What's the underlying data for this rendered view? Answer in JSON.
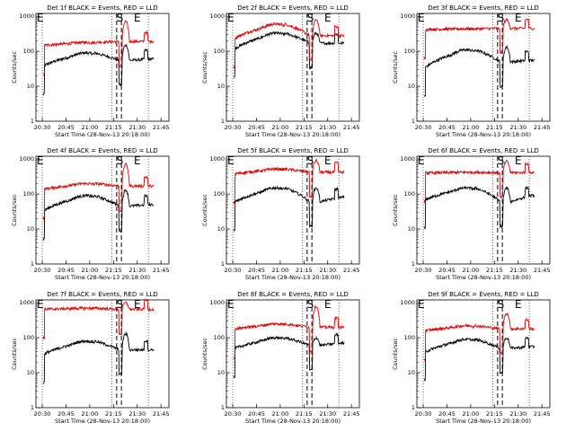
{
  "figure": {
    "xtick_labels": [
      "20:30",
      "20:45",
      "21:00",
      "21:15",
      "21:30",
      "21:45"
    ],
    "ytick_labels": [
      "1",
      "10",
      "100",
      "1000"
    ],
    "xlabel": "Start Time (28-Nov-13 20:18:00)",
    "ylabel": "Counts/sec",
    "marker_left": "E",
    "marker_mid": "S",
    "marker_right": "E"
  },
  "chart_data": [
    {
      "type": "line",
      "title": "Det 1f BLACK = Events, RED = LLD",
      "series": [
        {
          "name": "Events",
          "color": "#000000",
          "start": 40,
          "mid": 90,
          "end": 55,
          "peak": 150,
          "tail": 60
        },
        {
          "name": "LLD",
          "color": "#e00000",
          "start": 150,
          "mid": 180,
          "end": 190,
          "peak": 700,
          "tail": 190
        }
      ]
    },
    {
      "type": "line",
      "title": "Det 2f BLACK = Events, RED = LLD",
      "series": [
        {
          "name": "Events",
          "color": "#000000",
          "start": 120,
          "mid": 330,
          "end": 170,
          "peak": 330,
          "tail": 170
        },
        {
          "name": "LLD",
          "color": "#e00000",
          "start": 240,
          "mid": 600,
          "end": 280,
          "peak": 800,
          "tail": 280
        }
      ]
    },
    {
      "type": "line",
      "title": "Det 3f BLACK = Events, RED = LLD",
      "series": [
        {
          "name": "Events",
          "color": "#000000",
          "start": 35,
          "mid": 110,
          "end": 50,
          "peak": 130,
          "tail": 55
        },
        {
          "name": "LLD",
          "color": "#e00000",
          "start": 420,
          "mid": 440,
          "end": 450,
          "peak": 800,
          "tail": 450
        }
      ]
    },
    {
      "type": "line",
      "title": "Det 4f BLACK = Events, RED = LLD",
      "series": [
        {
          "name": "Events",
          "color": "#000000",
          "start": 35,
          "mid": 90,
          "end": 45,
          "peak": 130,
          "tail": 50
        },
        {
          "name": "LLD",
          "color": "#e00000",
          "start": 140,
          "mid": 200,
          "end": 170,
          "peak": 700,
          "tail": 170
        }
      ]
    },
    {
      "type": "line",
      "title": "Det 5f BLACK = Events, RED = LLD",
      "series": [
        {
          "name": "Events",
          "color": "#000000",
          "start": 60,
          "mid": 150,
          "end": 60,
          "peak": 150,
          "tail": 80
        },
        {
          "name": "LLD",
          "color": "#e00000",
          "start": 380,
          "mid": 520,
          "end": 420,
          "peak": 900,
          "tail": 420
        }
      ]
    },
    {
      "type": "line",
      "title": "Det 6f BLACK = Events, RED = LLD",
      "series": [
        {
          "name": "Events",
          "color": "#000000",
          "start": 70,
          "mid": 150,
          "end": 60,
          "peak": 150,
          "tail": 90
        },
        {
          "name": "LLD",
          "color": "#e00000",
          "start": 400,
          "mid": 420,
          "end": 410,
          "peak": 850,
          "tail": 410
        }
      ]
    },
    {
      "type": "line",
      "title": "Det 7f BLACK = Events, RED = LLD",
      "series": [
        {
          "name": "Events",
          "color": "#000000",
          "start": 35,
          "mid": 80,
          "end": 45,
          "peak": 130,
          "tail": 45
        },
        {
          "name": "LLD",
          "color": "#e00000",
          "start": 650,
          "mid": 700,
          "end": 650,
          "peak": 1000,
          "tail": 650
        }
      ]
    },
    {
      "type": "line",
      "title": "Det 8f BLACK = Events, RED = LLD",
      "series": [
        {
          "name": "Events",
          "color": "#000000",
          "start": 50,
          "mid": 100,
          "end": 60,
          "peak": 100,
          "tail": 70
        },
        {
          "name": "LLD",
          "color": "#e00000",
          "start": 180,
          "mid": 250,
          "end": 200,
          "peak": 800,
          "tail": 200
        }
      ]
    },
    {
      "type": "line",
      "title": "Det 9f BLACK = Events, RED = LLD",
      "series": [
        {
          "name": "Events",
          "color": "#000000",
          "start": 40,
          "mid": 90,
          "end": 50,
          "peak": 100,
          "tail": 55
        },
        {
          "name": "LLD",
          "color": "#e00000",
          "start": 160,
          "mid": 220,
          "end": 180,
          "peak": 500,
          "tail": 180
        }
      ]
    }
  ]
}
